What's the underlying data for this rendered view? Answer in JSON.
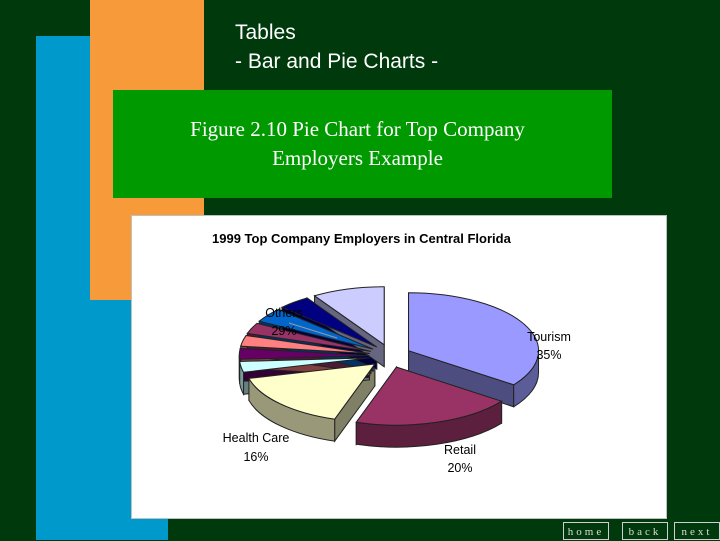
{
  "slide": {
    "title_line1": "Tables",
    "title_line2": "- Bar and Pie Charts -",
    "caption_line1": "Figure 2.10 Pie Chart for Top Company",
    "caption_line2": "Employers Example"
  },
  "colors": {
    "background": "#003a0c",
    "accent_blue": "#0099cc",
    "accent_orange": "#f79a3a",
    "caption_green": "#009900"
  },
  "chart_data": {
    "type": "pie",
    "style": "3d-exploded",
    "title": "1999 Top Company Employers in Central Florida",
    "slices": [
      {
        "name": "Tourism",
        "value": 35,
        "label_value": "35%",
        "color": "#9999ff",
        "labeled": true
      },
      {
        "name": "Retail",
        "value": 20,
        "label_value": "20%",
        "color": "#993366",
        "labeled": true
      },
      {
        "name": "Health Care",
        "value": 16,
        "label_value": "16%",
        "color": "#ffffcc",
        "labeled": true
      },
      {
        "name": "",
        "value": 3,
        "color": "#ccffff",
        "labeled": false
      },
      {
        "name": "",
        "value": 3,
        "color": "#660066",
        "labeled": false
      },
      {
        "name": "",
        "value": 3,
        "color": "#ff8080",
        "labeled": false
      },
      {
        "name": "",
        "value": 3,
        "color": "#993366",
        "labeled": false
      },
      {
        "name": "",
        "value": 4,
        "color": "#0066cc",
        "labeled": false
      },
      {
        "name": "",
        "value": 4,
        "color": "#000080",
        "labeled": false
      },
      {
        "name": "",
        "value": 9,
        "color": "#ccccff",
        "labeled": false
      }
    ],
    "group_label": {
      "name": "Others",
      "value": "29%"
    }
  },
  "nav": {
    "home": "home",
    "back": "back",
    "next": "next"
  }
}
